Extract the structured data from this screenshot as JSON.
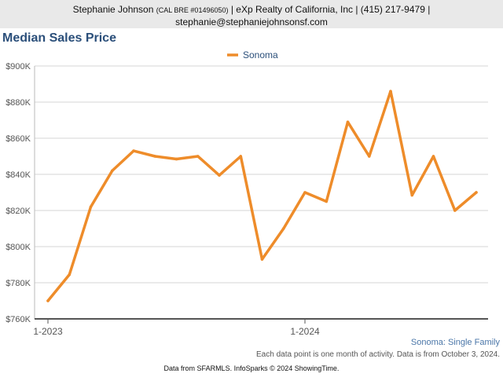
{
  "header": {
    "name": "Stephanie Johnson",
    "license": "(CAL BRE #01496050)",
    "rest": "| eXp Realty of California, Inc | (415) 217-9479 |",
    "email": "stephanie@stephaniejohnsonsf.com"
  },
  "footer": {
    "subtitle": "Sonoma: Single Family",
    "note": "Each data point is one month of activity. Data is from October 3, 2024.",
    "source": "Data from SFARMLS. InfoSparks © 2024 ShowingTime."
  },
  "colors": {
    "series": "#ee8c2a",
    "title": "#2b4f7a",
    "axis": "#555555",
    "grid": "#d6d6d6"
  },
  "chart_data": {
    "type": "line",
    "title": "Median Sales Price",
    "xlabel": "",
    "ylabel": "",
    "ylim": [
      760000,
      900000
    ],
    "yticks": [
      760000,
      780000,
      800000,
      820000,
      840000,
      860000,
      880000,
      900000
    ],
    "ytick_labels": [
      "$760K",
      "$780K",
      "$800K",
      "$820K",
      "$840K",
      "$860K",
      "$880K",
      "$900K"
    ],
    "xtick_labels": [
      {
        "label": "1-2023",
        "index": 0
      },
      {
        "label": "1-2024",
        "index": 12
      }
    ],
    "grid": true,
    "legend": "top-center",
    "x": [
      "2023-01",
      "2023-02",
      "2023-03",
      "2023-04",
      "2023-05",
      "2023-06",
      "2023-07",
      "2023-08",
      "2023-09",
      "2023-10",
      "2023-11",
      "2023-12",
      "2024-01",
      "2024-02",
      "2024-03",
      "2024-04",
      "2024-05",
      "2024-06",
      "2024-07",
      "2024-08",
      "2024-09"
    ],
    "series": [
      {
        "name": "Sonoma",
        "values": [
          770000,
          784500,
          822000,
          842000,
          853000,
          850000,
          848500,
          850000,
          839500,
          850000,
          793000,
          810000,
          830000,
          825000,
          869000,
          850000,
          886000,
          828500,
          850000,
          820000,
          830000
        ]
      }
    ]
  }
}
